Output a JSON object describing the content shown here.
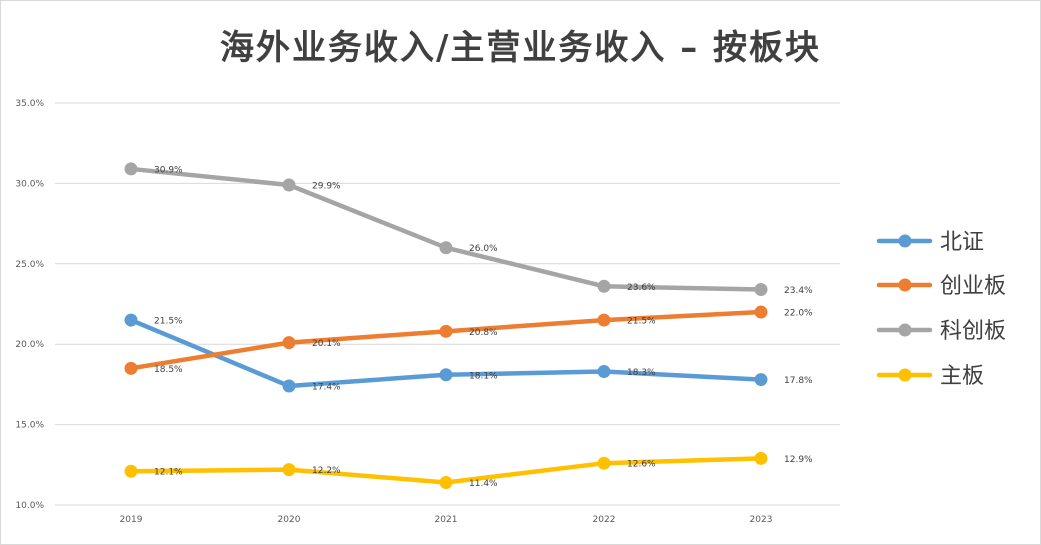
{
  "chart_data": {
    "type": "line",
    "title": "海外业务收入/主营业务收入 – 按板块",
    "categories": [
      "2019",
      "2020",
      "2021",
      "2022",
      "2023"
    ],
    "ylim": [
      0.1,
      0.35
    ],
    "yticks": [
      "10.0%",
      "15.0%",
      "20.0%",
      "25.0%",
      "30.0%",
      "35.0%"
    ],
    "ytick_values": [
      0.1,
      0.15,
      0.2,
      0.25,
      0.3,
      0.35
    ],
    "xlabel": "",
    "ylabel": "",
    "legend_position": "right",
    "series": [
      {
        "name": "北证",
        "color": "#5b9bd5",
        "values": [
          0.215,
          0.174,
          0.181,
          0.183,
          0.178
        ],
        "labels": [
          "21.5%",
          "17.4%",
          "18.1%",
          "18.3%",
          "17.8%"
        ]
      },
      {
        "name": "创业板",
        "color": "#ed7d31",
        "values": [
          0.185,
          0.201,
          0.208,
          0.215,
          0.22
        ],
        "labels": [
          "18.5%",
          "20.1%",
          "20.8%",
          "21.5%",
          "22.0%"
        ]
      },
      {
        "name": "科创板",
        "color": "#a5a5a5",
        "values": [
          0.309,
          0.299,
          0.26,
          0.236,
          0.234
        ],
        "labels": [
          "30.9%",
          "29.9%",
          "26.0%",
          "23.6%",
          "23.4%"
        ]
      },
      {
        "name": "主板",
        "color": "#ffc000",
        "values": [
          0.121,
          0.122,
          0.114,
          0.126,
          0.129
        ],
        "labels": [
          "12.1%",
          "12.2%",
          "11.4%",
          "12.6%",
          "12.9%"
        ]
      }
    ]
  }
}
